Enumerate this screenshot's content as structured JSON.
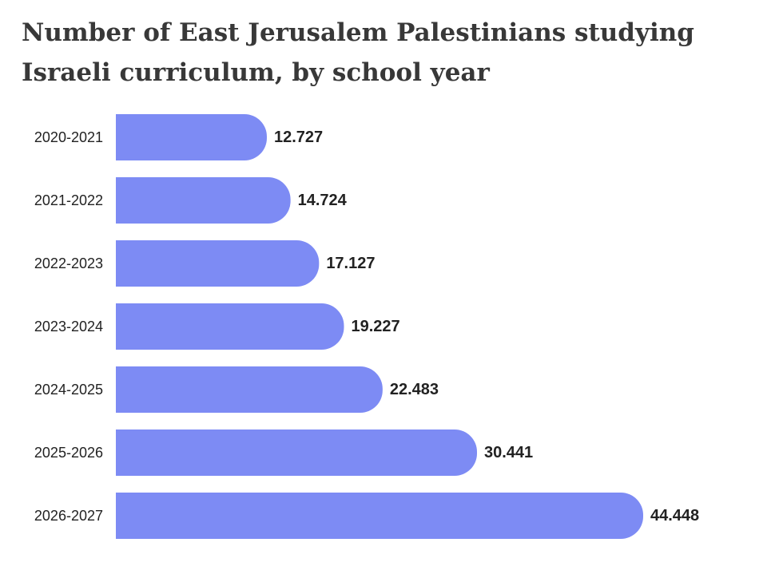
{
  "chart_data": {
    "type": "bar",
    "orientation": "horizontal",
    "title": "Number of East Jerusalem Palestinians studying Israeli curriculum, by school year",
    "categories": [
      "2020-2021",
      "2021-2022",
      "2022-2023",
      "2023-2024",
      "2024-2025",
      "2025-2026",
      "2026-2027"
    ],
    "values": [
      12727,
      14724,
      17127,
      19227,
      22483,
      30441,
      44448
    ],
    "value_labels": [
      "12.727",
      "14.724",
      "17.127",
      "19.227",
      "22.483",
      "30.441",
      "44.448"
    ],
    "xlim": [
      0,
      44448
    ],
    "grid": false,
    "legend": "none",
    "bar_color": "#7d8bf4"
  }
}
